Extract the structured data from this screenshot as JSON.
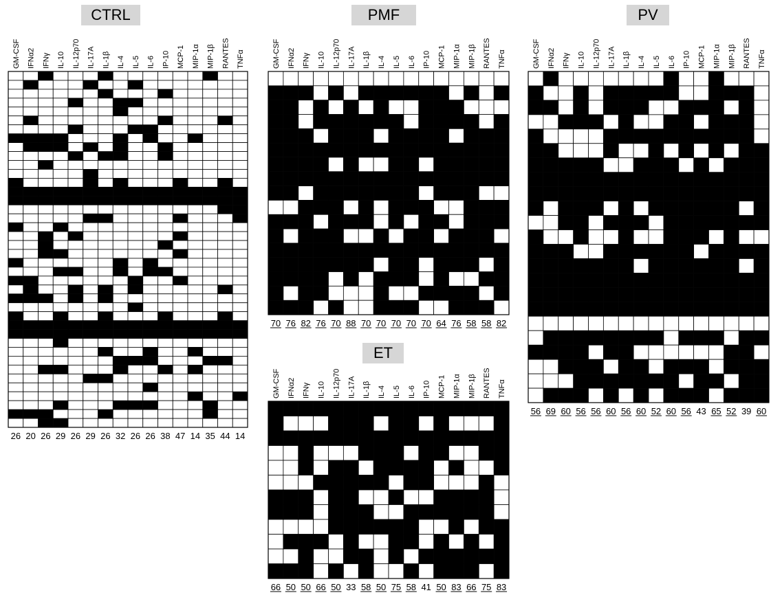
{
  "cytokines": [
    "GM-CSF",
    "IFNα2",
    "IFNγ",
    "IL-10",
    "IL-12p70",
    "IL-17A",
    "IL-1β",
    "IL-4",
    "IL-5",
    "IL-6",
    "IP-10",
    "MCP-1",
    "MIP-1α",
    "MIP-1β",
    "RANTES",
    "TNFα"
  ],
  "chart_data": [
    {
      "type": "heatmap",
      "title": "CTRL",
      "x": [
        "GM-CSF",
        "IFNα2",
        "IFNγ",
        "IL-10",
        "IL-12p70",
        "IL-17A",
        "IL-1β",
        "IL-4",
        "IL-5",
        "IL-6",
        "IP-10",
        "MCP-1",
        "MIP-1α",
        "MIP-1β",
        "RANTES",
        "TNFα"
      ],
      "footer_values": [
        "26",
        "20",
        "26",
        "29",
        "26",
        "29",
        "26",
        "32",
        "26",
        "26",
        "38",
        "47",
        "14",
        "35",
        "44",
        "14"
      ],
      "underlined": [],
      "color_map": {
        "1": "#000000",
        "0": "#ffffff"
      },
      "grid": [
        "0000000000000000",
        "1000000100100010",
        "0000100000010000",
        "0000000000000010",
        "0000000000001010",
        "0000000000000010",
        "0000000000011000",
        "0011110000111010",
        "0000011000011000",
        "1111111111111110",
        "0100000000000000",
        "1111111111111111",
        "0001111010001111",
        "0000000000001000",
        "0000000000010001",
        "0000000011000000",
        "0000000110001001",
        "0000000111000000",
        "0000001111001000",
        "0000001100100010",
        "0000100000000000",
        "0001001011000000",
        "1111111111111100",
        "0111111111111111",
        "0111111101000000",
        "0000000000001100",
        "0000000000001100",
        "0000000000010000",
        "1010100000000011",
        "0000000000011000",
        "0001111111111000",
        "0000000000000100",
        "0000001100011000",
        "1111111111110000",
        "1111111111110101",
        "0111101111111101",
        "0000000000000000",
        "0000111000011011",
        "0000011000110000",
        "1111011011010001",
        "1111111111111111",
        "1111111111111111",
        "1101111011011101",
        "1110000000100011",
        "0001100000011111",
        "1111111011011000",
        "0000111001010100",
        "1000101100011110",
        "0000000000001100",
        "1111111111110010",
        "1111101011110010",
        "1000011000011010",
        "1000000010000010",
        "0001000000000000",
        "0000000000000000",
        "0000000000011101",
        "0000000010001000",
        "0000000000000000"
      ],
      "grid_rows_shown": 30
    },
    {
      "type": "heatmap",
      "title": "PMF",
      "x": [
        "GM-CSF",
        "IFNα2",
        "IFNγ",
        "IL-10",
        "IL-12p70",
        "IL-17A",
        "IL-1β",
        "IL-4",
        "IL-5",
        "IL-6",
        "IP-10",
        "MCP-1",
        "MIP-1α",
        "MIP-1β",
        "RANTES",
        "TNFα"
      ],
      "footer_values": [
        "70",
        "76",
        "82",
        "76",
        "70",
        "88",
        "70",
        "70",
        "70",
        "70",
        "70",
        "64",
        "76",
        "58",
        "58",
        "82"
      ],
      "underlined": [
        "70",
        "76",
        "82",
        "76",
        "70",
        "88",
        "70",
        "70",
        "70",
        "70",
        "70",
        "64",
        "76",
        "58",
        "58",
        "82"
      ]
    },
    {
      "type": "heatmap",
      "title": "ET",
      "x": [
        "GM-CSF",
        "IFNα2",
        "IFNγ",
        "IL-10",
        "IL-12p70",
        "IL-17A",
        "IL-1β",
        "IL-4",
        "IL-5",
        "IL-6",
        "IP-10",
        "MCP-1",
        "MIP-1α",
        "MIP-1β",
        "RANTES",
        "TNFα"
      ],
      "footer_values": [
        "66",
        "50",
        "50",
        "66",
        "50",
        "33",
        "58",
        "50",
        "75",
        "58",
        "41",
        "50",
        "83",
        "66",
        "75",
        "83"
      ]
    },
    {
      "type": "heatmap",
      "title": "PV",
      "x": [
        "GM-CSF",
        "IFNα2",
        "IFNγ",
        "IL-10",
        "IL-12p70",
        "IL-17A",
        "IL-1β",
        "IL-4",
        "IL-5",
        "IL-6",
        "IP-10",
        "MCP-1",
        "MIP-1α",
        "MIP-1β",
        "RANTES",
        "TNFα"
      ],
      "footer_values": [
        "56",
        "69",
        "60",
        "56",
        "56",
        "60",
        "56",
        "60",
        "52",
        "60",
        "56",
        "43",
        "65",
        "52",
        "39",
        "60"
      ]
    }
  ]
}
